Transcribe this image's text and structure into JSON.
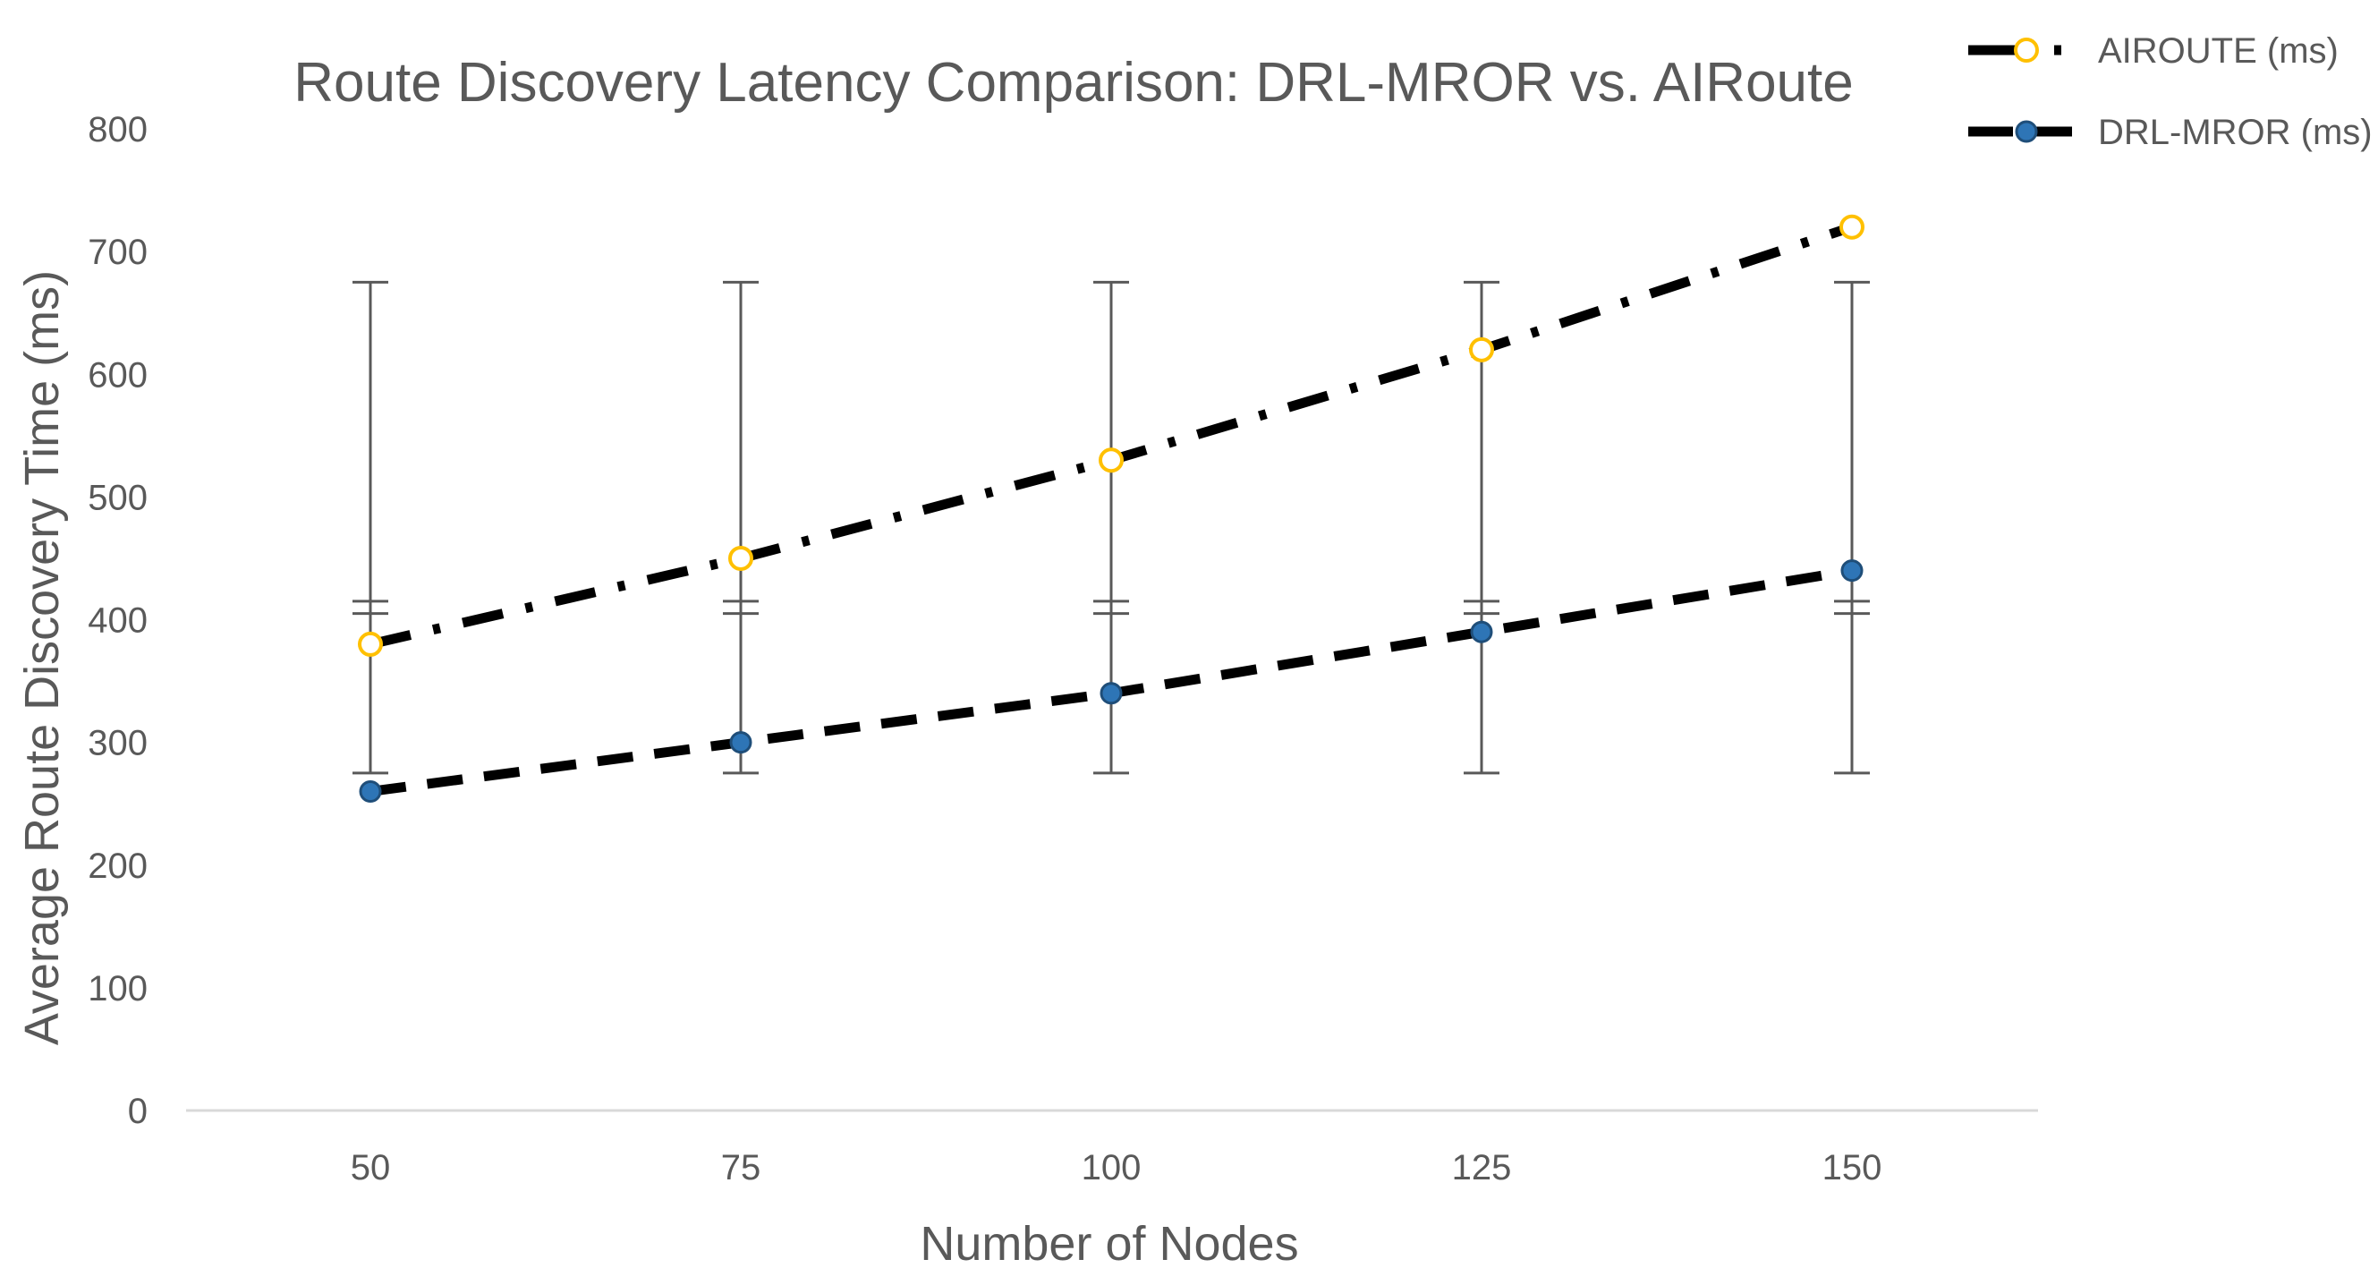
{
  "chart_data": {
    "type": "line",
    "title": "Route Discovery Latency Comparison: DRL-MROR vs. AIRoute",
    "xlabel": "Number of Nodes",
    "ylabel": "Average Route Discovery Time (ms)",
    "categories": [
      "50",
      "75",
      "100",
      "125",
      "150"
    ],
    "ylim": [
      0,
      800
    ],
    "yticks": [
      0,
      100,
      200,
      300,
      400,
      500,
      600,
      700,
      800
    ],
    "grid": false,
    "legend_position": "top-right",
    "series": [
      {
        "name": "AIROUTE (ms)",
        "values": [
          380,
          450,
          530,
          620,
          720
        ],
        "line_style": "dash-dot",
        "line_color": "#000000",
        "marker": "circle-open",
        "marker_color": "#FFC000",
        "error_bars": {
          "lower": 275,
          "upper": 675
        }
      },
      {
        "name": "DRL-MROR (ms)",
        "values": [
          260,
          300,
          340,
          390,
          440
        ],
        "line_style": "dash",
        "line_color": "#000000",
        "marker": "circle-filled",
        "marker_color": "#2E75B6",
        "error_bars": {
          "lower": 405,
          "upper": 415
        }
      }
    ]
  }
}
